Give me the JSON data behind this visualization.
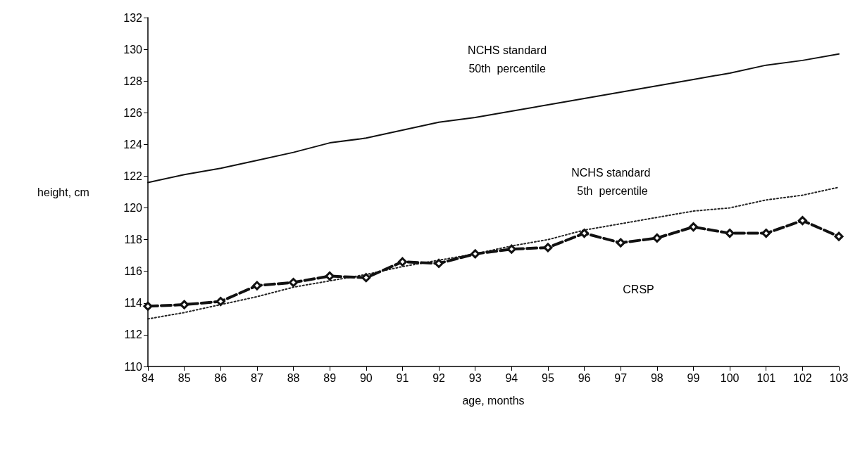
{
  "chart_data": {
    "type": "line",
    "xlabel": "age, months",
    "ylabel": "height, cm",
    "x": [
      84,
      85,
      86,
      87,
      88,
      89,
      90,
      91,
      92,
      93,
      94,
      95,
      96,
      97,
      98,
      99,
      100,
      101,
      102,
      103
    ],
    "series": [
      {
        "color": "#111111",
        "line_style": "solid",
        "marker": "none",
        "values": [
          121.6,
          122.1,
          122.5,
          123.0,
          123.5,
          124.1,
          124.4,
          124.9,
          125.4,
          125.7,
          126.1,
          126.5,
          126.9,
          127.3,
          127.7,
          128.1,
          128.5,
          129.0,
          129.3,
          129.7
        ]
      },
      {
        "color": "#222222",
        "line_style": "dotted",
        "marker": "none",
        "values": [
          113.0,
          113.4,
          113.9,
          114.4,
          115.0,
          115.4,
          115.8,
          116.3,
          116.7,
          117.1,
          117.6,
          118.0,
          118.6,
          119.0,
          119.4,
          119.8,
          120.0,
          120.5,
          120.8,
          121.3
        ]
      },
      {
        "color": "#111111",
        "line_style": "dashed",
        "marker": "diamond",
        "values": [
          113.8,
          113.9,
          114.1,
          115.1,
          115.3,
          115.7,
          115.6,
          116.6,
          116.5,
          117.1,
          117.4,
          117.5,
          118.4,
          117.8,
          118.1,
          118.8,
          118.4,
          118.4,
          119.2,
          118.2
        ]
      }
    ],
    "xlim": [
      84,
      103
    ],
    "xticks": [
      84,
      85,
      86,
      87,
      88,
      89,
      90,
      91,
      92,
      93,
      94,
      95,
      96,
      97,
      98,
      99,
      100,
      101,
      102,
      103
    ],
    "ylim": [
      110,
      132
    ],
    "yticks": [
      110,
      112,
      114,
      116,
      118,
      120,
      122,
      124,
      126,
      128,
      130,
      132
    ],
    "grid": false,
    "annotations": [
      "NCHS standard\n50th  percentile",
      "NCHS standard\n 5th  percentile",
      "CRSP"
    ]
  }
}
